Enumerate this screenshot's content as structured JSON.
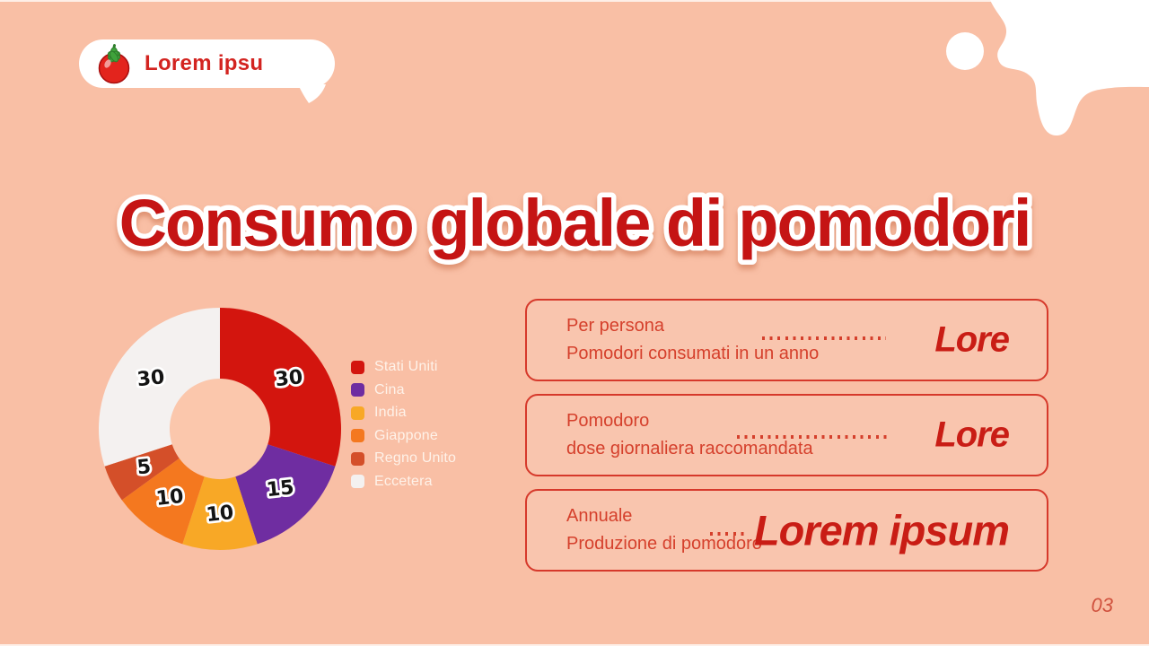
{
  "slide": {
    "background_color": "#f9bfa5",
    "page_number": "03"
  },
  "bubble": {
    "icon": "tomato-icon",
    "label": "Lorem ipsu"
  },
  "title": "Consumo globale di pomodori",
  "chart_data": {
    "type": "pie",
    "subtype": "donut",
    "title": "",
    "categories": [
      "Stati Uniti",
      "Cina",
      "India",
      "Giappone",
      "Regno Unito",
      "Eccetera"
    ],
    "values": [
      30,
      15,
      10,
      10,
      5,
      30
    ],
    "slice_labels": [
      "30",
      "15",
      "10",
      "10",
      "5",
      "30"
    ],
    "colors": [
      "#d3150e",
      "#6f2da1",
      "#f8a826",
      "#f4781f",
      "#d44f29",
      "#f4f1f0"
    ],
    "start_angle_deg": 0,
    "direction": "clockwise",
    "legend_position": "right",
    "hole_color": "#fbc7ac"
  },
  "info_cards": [
    {
      "line1": "Per persona",
      "line2": "Pomodori consumati in un anno",
      "value": "Lore"
    },
    {
      "line1": "Pomodoro",
      "line2": "dose giornaliera raccomandata",
      "value": "Lore"
    },
    {
      "line1": "Annuale",
      "line2": "Produzione di pomodoro",
      "value": "Lorem ipsum"
    }
  ],
  "colors": {
    "title_red": "#c51414",
    "card_border": "#d6392b",
    "card_text": "#d5402c",
    "value_text": "#c91d15",
    "bubble_text": "#d32420",
    "legend_text": "#fffaf4",
    "page_number": "#d0513d"
  }
}
